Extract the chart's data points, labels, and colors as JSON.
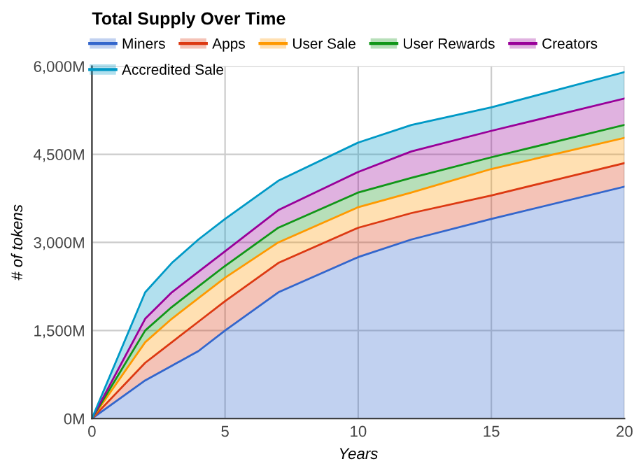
{
  "chart_data": {
    "type": "area",
    "stacked": true,
    "title": "Total Supply Over Time",
    "xlabel": "Years",
    "ylabel": "# of tokens",
    "x": [
      0,
      2,
      3,
      4,
      5,
      7,
      10,
      12,
      15,
      20
    ],
    "series": [
      {
        "name": "Miners",
        "color": "#3366cc",
        "values": [
          0,
          650,
          900,
          1150,
          1500,
          2150,
          2750,
          3050,
          3400,
          3950
        ]
      },
      {
        "name": "Apps",
        "color": "#dc3912",
        "values": [
          0,
          300,
          400,
          500,
          500,
          500,
          500,
          450,
          400,
          400
        ]
      },
      {
        "name": "User Sale",
        "color": "#ff9900",
        "values": [
          0,
          350,
          400,
          400,
          400,
          350,
          350,
          350,
          450,
          430
        ]
      },
      {
        "name": "User Rewards",
        "color": "#109618",
        "values": [
          0,
          200,
          200,
          200,
          200,
          250,
          250,
          250,
          200,
          220
        ]
      },
      {
        "name": "Creators",
        "color": "#990099",
        "values": [
          0,
          200,
          250,
          250,
          250,
          300,
          350,
          450,
          450,
          450
        ]
      },
      {
        "name": "Accredited Sale",
        "color": "#0099c6",
        "values": [
          0,
          450,
          500,
          550,
          550,
          500,
          500,
          450,
          400,
          450
        ]
      }
    ],
    "xlim": [
      0,
      20
    ],
    "xticks": [
      0,
      5,
      10,
      15,
      20
    ],
    "ylim": [
      0,
      6000
    ],
    "yticks": [
      {
        "value": 0,
        "label": "0M"
      },
      {
        "value": 1500,
        "label": "1,500M"
      },
      {
        "value": 3000,
        "label": "3,000M"
      },
      {
        "value": 4500,
        "label": "4,500M"
      },
      {
        "value": 6000,
        "label": "6,000M"
      }
    ],
    "grid": true,
    "legend": "top"
  }
}
